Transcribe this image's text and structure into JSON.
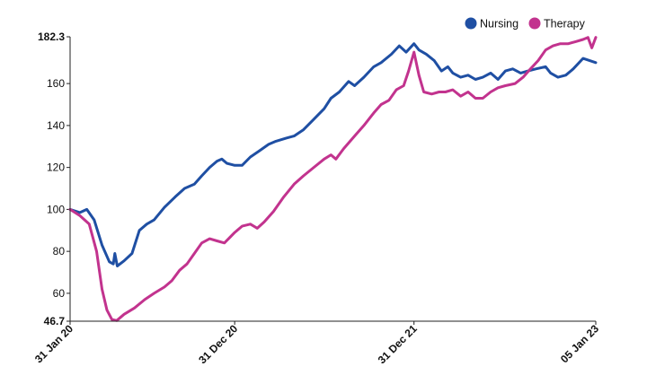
{
  "chart_data": {
    "type": "line",
    "x_axis": {
      "type": "date",
      "range": [
        "2020-01-31",
        "2023-01-05"
      ],
      "tick_labels": [
        {
          "date": "2020-01-31",
          "label": "31 Jan 20",
          "bold": true
        },
        {
          "date": "2020-12-31",
          "label": "31 Dec 20",
          "bold": true
        },
        {
          "date": "2021-12-31",
          "label": "31 Dec 21",
          "bold": true
        },
        {
          "date": "2023-01-05",
          "label": "05 Jan 23",
          "bold": true
        }
      ]
    },
    "y_axis": {
      "range": [
        46.7,
        182.3
      ],
      "tick_labels": [
        {
          "value": 46.7,
          "label": "46.7",
          "bold": true
        },
        {
          "value": 60,
          "label": "60",
          "bold": false
        },
        {
          "value": 80,
          "label": "80",
          "bold": false
        },
        {
          "value": 100,
          "label": "100",
          "bold": false
        },
        {
          "value": 120,
          "label": "120",
          "bold": false
        },
        {
          "value": 140,
          "label": "140",
          "bold": false
        },
        {
          "value": 160,
          "label": "160",
          "bold": false
        },
        {
          "value": 182.3,
          "label": "182.3",
          "bold": true
        }
      ]
    },
    "grid": false,
    "legend_position": "top-right",
    "series": [
      {
        "name": "Nursing",
        "color": "#1f4fa3",
        "points": [
          [
            "2020-01-31",
            100
          ],
          [
            "2020-02-20",
            98.5
          ],
          [
            "2020-03-05",
            100
          ],
          [
            "2020-03-20",
            95
          ],
          [
            "2020-04-05",
            83
          ],
          [
            "2020-04-20",
            75
          ],
          [
            "2020-04-28",
            74
          ],
          [
            "2020-05-01",
            79
          ],
          [
            "2020-05-06",
            73
          ],
          [
            "2020-05-20",
            75.5
          ],
          [
            "2020-06-05",
            79
          ],
          [
            "2020-06-20",
            90
          ],
          [
            "2020-07-05",
            93
          ],
          [
            "2020-07-20",
            95
          ],
          [
            "2020-08-10",
            101
          ],
          [
            "2020-09-01",
            106
          ],
          [
            "2020-09-20",
            110
          ],
          [
            "2020-10-10",
            112
          ],
          [
            "2020-10-25",
            116
          ],
          [
            "2020-11-10",
            120
          ],
          [
            "2020-11-25",
            123
          ],
          [
            "2020-12-05",
            124
          ],
          [
            "2020-12-15",
            122
          ],
          [
            "2020-12-31",
            121
          ],
          [
            "2021-01-15",
            121
          ],
          [
            "2021-02-01",
            125
          ],
          [
            "2021-02-20",
            128
          ],
          [
            "2021-03-10",
            131
          ],
          [
            "2021-03-25",
            132.5
          ],
          [
            "2021-04-15",
            134
          ],
          [
            "2021-05-01",
            135
          ],
          [
            "2021-05-20",
            138
          ],
          [
            "2021-06-10",
            143
          ],
          [
            "2021-07-01",
            148
          ],
          [
            "2021-07-15",
            153
          ],
          [
            "2021-08-01",
            156
          ],
          [
            "2021-08-20",
            161
          ],
          [
            "2021-09-01",
            159
          ],
          [
            "2021-09-20",
            163
          ],
          [
            "2021-10-10",
            168
          ],
          [
            "2021-10-25",
            170
          ],
          [
            "2021-11-15",
            174
          ],
          [
            "2021-12-01",
            178
          ],
          [
            "2021-12-15",
            175
          ],
          [
            "2021-12-31",
            179
          ],
          [
            "2022-01-10",
            176
          ],
          [
            "2022-01-25",
            174
          ],
          [
            "2022-02-10",
            171
          ],
          [
            "2022-02-25",
            166
          ],
          [
            "2022-03-10",
            168
          ],
          [
            "2022-03-20",
            165
          ],
          [
            "2022-04-05",
            163
          ],
          [
            "2022-04-20",
            164
          ],
          [
            "2022-05-05",
            162
          ],
          [
            "2022-05-20",
            163
          ],
          [
            "2022-06-05",
            165
          ],
          [
            "2022-06-20",
            162
          ],
          [
            "2022-07-05",
            166
          ],
          [
            "2022-07-20",
            167
          ],
          [
            "2022-08-05",
            165
          ],
          [
            "2022-08-20",
            166
          ],
          [
            "2022-09-05",
            167
          ],
          [
            "2022-09-25",
            168
          ],
          [
            "2022-10-05",
            165
          ],
          [
            "2022-10-20",
            163
          ],
          [
            "2022-11-05",
            164
          ],
          [
            "2022-11-20",
            167
          ],
          [
            "2022-12-10",
            172
          ],
          [
            "2023-01-05",
            170
          ]
        ]
      },
      {
        "name": "Therapy",
        "color": "#c2338e",
        "points": [
          [
            "2020-01-31",
            100
          ],
          [
            "2020-02-20",
            97
          ],
          [
            "2020-03-10",
            93
          ],
          [
            "2020-03-25",
            80
          ],
          [
            "2020-04-05",
            62
          ],
          [
            "2020-04-15",
            52
          ],
          [
            "2020-04-25",
            47.5
          ],
          [
            "2020-05-05",
            47
          ],
          [
            "2020-05-20",
            50
          ],
          [
            "2020-06-10",
            53
          ],
          [
            "2020-07-01",
            57
          ],
          [
            "2020-07-20",
            60
          ],
          [
            "2020-08-10",
            63
          ],
          [
            "2020-08-25",
            66
          ],
          [
            "2020-09-10",
            71
          ],
          [
            "2020-09-25",
            74
          ],
          [
            "2020-10-10",
            79
          ],
          [
            "2020-10-25",
            84
          ],
          [
            "2020-11-10",
            86
          ],
          [
            "2020-11-25",
            85
          ],
          [
            "2020-12-10",
            84
          ],
          [
            "2020-12-31",
            89
          ],
          [
            "2021-01-15",
            92
          ],
          [
            "2021-02-01",
            93
          ],
          [
            "2021-02-15",
            91
          ],
          [
            "2021-03-01",
            94
          ],
          [
            "2021-03-20",
            99
          ],
          [
            "2021-04-10",
            106
          ],
          [
            "2021-05-01",
            112
          ],
          [
            "2021-05-20",
            116
          ],
          [
            "2021-06-10",
            120
          ],
          [
            "2021-07-01",
            124
          ],
          [
            "2021-07-15",
            126
          ],
          [
            "2021-07-25",
            124
          ],
          [
            "2021-08-10",
            129
          ],
          [
            "2021-09-01",
            135
          ],
          [
            "2021-09-20",
            140
          ],
          [
            "2021-10-10",
            146
          ],
          [
            "2021-10-25",
            150
          ],
          [
            "2021-11-10",
            152
          ],
          [
            "2021-11-25",
            157
          ],
          [
            "2021-12-10",
            159
          ],
          [
            "2021-12-20",
            166
          ],
          [
            "2021-12-31",
            175
          ],
          [
            "2022-01-10",
            164
          ],
          [
            "2022-01-20",
            156
          ],
          [
            "2022-02-05",
            155
          ],
          [
            "2022-02-20",
            156
          ],
          [
            "2022-03-05",
            156
          ],
          [
            "2022-03-20",
            157
          ],
          [
            "2022-04-05",
            154
          ],
          [
            "2022-04-20",
            156
          ],
          [
            "2022-05-05",
            153
          ],
          [
            "2022-05-20",
            153
          ],
          [
            "2022-06-05",
            156
          ],
          [
            "2022-06-20",
            158
          ],
          [
            "2022-07-05",
            159
          ],
          [
            "2022-07-25",
            160
          ],
          [
            "2022-08-10",
            163
          ],
          [
            "2022-08-25",
            167
          ],
          [
            "2022-09-10",
            171
          ],
          [
            "2022-09-25",
            176
          ],
          [
            "2022-10-10",
            178
          ],
          [
            "2022-10-25",
            179
          ],
          [
            "2022-11-10",
            179
          ],
          [
            "2022-11-25",
            180
          ],
          [
            "2022-12-10",
            181
          ],
          [
            "2022-12-20",
            182
          ],
          [
            "2022-12-28",
            177
          ],
          [
            "2023-01-05",
            182
          ]
        ]
      }
    ]
  }
}
